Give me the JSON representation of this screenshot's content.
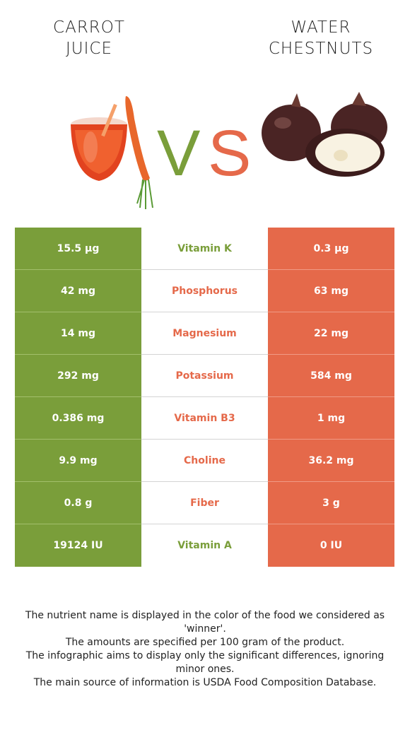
{
  "left_food": {
    "line1": "CARROT",
    "line2": "JUICE",
    "color": "#7a9e3a"
  },
  "right_food": {
    "line1": "WATER",
    "line2": "CHESTNUTS",
    "color": "#e5694a"
  },
  "vs": {
    "v": "V",
    "s": "S"
  },
  "rows": [
    {
      "left": "15.5 µg",
      "nutrient": "Vitamin K",
      "right": "0.3 µg",
      "winner": "left"
    },
    {
      "left": "42 mg",
      "nutrient": "Phosphorus",
      "right": "63 mg",
      "winner": "right"
    },
    {
      "left": "14 mg",
      "nutrient": "Magnesium",
      "right": "22 mg",
      "winner": "right"
    },
    {
      "left": "292 mg",
      "nutrient": "Potassium",
      "right": "584 mg",
      "winner": "right"
    },
    {
      "left": "0.386 mg",
      "nutrient": "Vitamin B3",
      "right": "1 mg",
      "winner": "right"
    },
    {
      "left": "9.9 mg",
      "nutrient": "Choline",
      "right": "36.2 mg",
      "winner": "right"
    },
    {
      "left": "0.8 g",
      "nutrient": "Fiber",
      "right": "3 g",
      "winner": "right"
    },
    {
      "left": "19124 IU",
      "nutrient": "Vitamin A",
      "right": "0 IU",
      "winner": "left"
    }
  ],
  "footer": [
    "The nutrient name is displayed in the color of the food we considered as 'winner'.",
    "The amounts are specified per 100 gram of the product.",
    "The infographic aims to display only the significant differences, ignoring minor ones.",
    "The main source of information is USDA Food Composition Database."
  ]
}
